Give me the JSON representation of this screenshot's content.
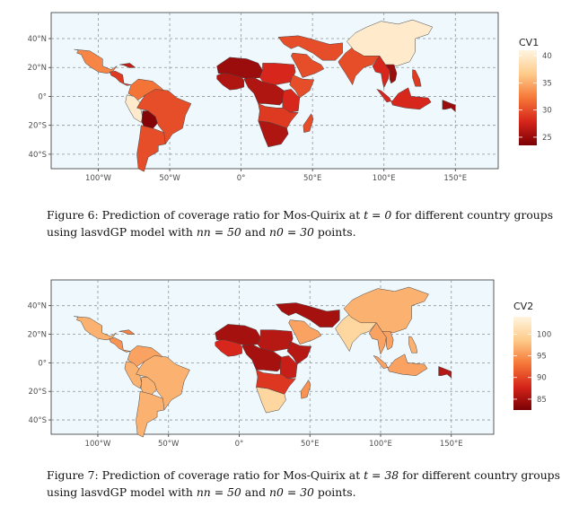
{
  "colors": {
    "ocean": "#EEF8FD",
    "grid": "#8E9499",
    "scale": [
      "#FFF5E0",
      "#FDCB8A",
      "#F67838",
      "#D6251B",
      "#7A0004"
    ]
  },
  "map": {
    "lat_ticks": [
      {
        "value": 40,
        "label": "40°N"
      },
      {
        "value": 20,
        "label": "20°N"
      },
      {
        "value": 0,
        "label": "0°"
      },
      {
        "value": -20,
        "label": "20°S"
      },
      {
        "value": -40,
        "label": "40°S"
      }
    ],
    "lon_ticks": [
      {
        "value": -100,
        "label": "100°W"
      },
      {
        "value": -50,
        "label": "50°W"
      },
      {
        "value": 0,
        "label": "0°"
      },
      {
        "value": 50,
        "label": "50°E"
      },
      {
        "value": 100,
        "label": "100°E"
      },
      {
        "value": 150,
        "label": "150°E"
      }
    ],
    "lon_range": [
      -133,
      180
    ],
    "lat_range": [
      -50,
      58
    ]
  },
  "figures": [
    {
      "legend": {
        "title": "CV1",
        "ticks": [
          40,
          35,
          30,
          25
        ],
        "range": [
          23.5,
          41
        ]
      },
      "caption": {
        "prefix": "Figure 6: Prediction of coverage ratio for Mos-Quirix at",
        "t_value": "t = 0",
        "middle": "for different country groups using lasvdGP model with",
        "nn": "nn = 50",
        "and": "and",
        "n0": "n0 = 30",
        "suffix": "points."
      },
      "regions": [
        {
          "name": "Mexico",
          "value": 33
        },
        {
          "name": "Central America",
          "value": 29
        },
        {
          "name": "Caribbean",
          "value": 27
        },
        {
          "name": "Colombia-Venezuela",
          "value": 32
        },
        {
          "name": "Ecuador-Peru",
          "value": 40
        },
        {
          "name": "Bolivia",
          "value": 24
        },
        {
          "name": "Brazil",
          "value": 30
        },
        {
          "name": "Southern Cone",
          "value": 30
        },
        {
          "name": "West Africa",
          "value": 26
        },
        {
          "name": "Sahel",
          "value": 25
        },
        {
          "name": "Sudan-Chad",
          "value": 28
        },
        {
          "name": "Horn of Africa",
          "value": 30
        },
        {
          "name": "Central Africa",
          "value": 26
        },
        {
          "name": "East Africa",
          "value": 28
        },
        {
          "name": "Angola-Zambia",
          "value": 29
        },
        {
          "name": "Southern Africa",
          "value": 26
        },
        {
          "name": "Madagascar",
          "value": 30
        },
        {
          "name": "Saudi Arabia",
          "value": 30
        },
        {
          "name": "Middle East",
          "value": 30
        },
        {
          "name": "India",
          "value": 30
        },
        {
          "name": "China",
          "value": 40
        },
        {
          "name": "Myanmar-Thailand",
          "value": 28
        },
        {
          "name": "Vietnam-Laos",
          "value": 25
        },
        {
          "name": "Philippines",
          "value": 29
        },
        {
          "name": "Indonesia",
          "value": 28
        },
        {
          "name": "Papua New Guinea",
          "value": 25
        }
      ]
    },
    {
      "legend": {
        "title": "CV2",
        "ticks": [
          100,
          95,
          90,
          85
        ],
        "range": [
          82.5,
          104
        ]
      },
      "caption": {
        "prefix": "Figure 7: Prediction of coverage ratio for Mos-Quirix at",
        "t_value": "t = 38",
        "middle": "for different country groups using lasvdGP model with",
        "nn": "nn = 50",
        "and": "and",
        "n0": "n0 = 30",
        "suffix": "points."
      },
      "regions": [
        {
          "name": "Mexico",
          "value": 97
        },
        {
          "name": "Central America",
          "value": 95
        },
        {
          "name": "Caribbean",
          "value": 94
        },
        {
          "name": "Colombia-Venezuela",
          "value": 96
        },
        {
          "name": "Ecuador-Peru",
          "value": 97
        },
        {
          "name": "Bolivia",
          "value": 97
        },
        {
          "name": "Brazil",
          "value": 97
        },
        {
          "name": "Southern Cone",
          "value": 97
        },
        {
          "name": "West Africa",
          "value": 88
        },
        {
          "name": "Sahel",
          "value": 85
        },
        {
          "name": "Sudan-Chad",
          "value": 86
        },
        {
          "name": "Horn of Africa",
          "value": 86
        },
        {
          "name": "Central Africa",
          "value": 85
        },
        {
          "name": "East Africa",
          "value": 87
        },
        {
          "name": "Angola-Zambia",
          "value": 89
        },
        {
          "name": "Southern Africa",
          "value": 100
        },
        {
          "name": "Madagascar",
          "value": 95
        },
        {
          "name": "Saudi Arabia",
          "value": 96
        },
        {
          "name": "Middle East",
          "value": 85
        },
        {
          "name": "India",
          "value": 100
        },
        {
          "name": "China",
          "value": 97
        },
        {
          "name": "Myanmar-Thailand",
          "value": 96
        },
        {
          "name": "Vietnam-Laos",
          "value": 96
        },
        {
          "name": "Philippines",
          "value": 97
        },
        {
          "name": "Indonesia",
          "value": 96
        },
        {
          "name": "Papua New Guinea",
          "value": 86
        }
      ]
    }
  ]
}
